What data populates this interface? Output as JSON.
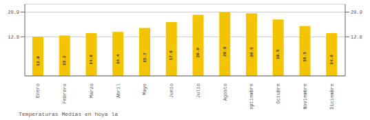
{
  "chart_data": {
    "type": "bar",
    "title": "Temperaturas Medias en hoya la",
    "categories": [
      "Enero",
      "Febrero",
      "Marzo",
      "Abril",
      "Mayo",
      "Junio",
      "Julio",
      "Agosto",
      "Septiembre",
      "Octubre",
      "Noviembre",
      "Diciembre"
    ],
    "values": [
      12.8,
      13.2,
      14.0,
      14.4,
      15.7,
      17.6,
      20.0,
      20.9,
      20.5,
      18.5,
      16.3,
      14.0
    ],
    "value_labels": [
      "12.8",
      "13.2",
      "14.0",
      "14.4",
      "15.7",
      "17.6",
      "20.0",
      "20.9",
      "20.5",
      "18.5",
      "16.3",
      "14.0"
    ],
    "color": "#F5C400",
    "ylim": [
      0,
      23.5
    ],
    "yticks": [
      12.8,
      20.9
    ],
    "grid": true,
    "data_labels": true
  }
}
